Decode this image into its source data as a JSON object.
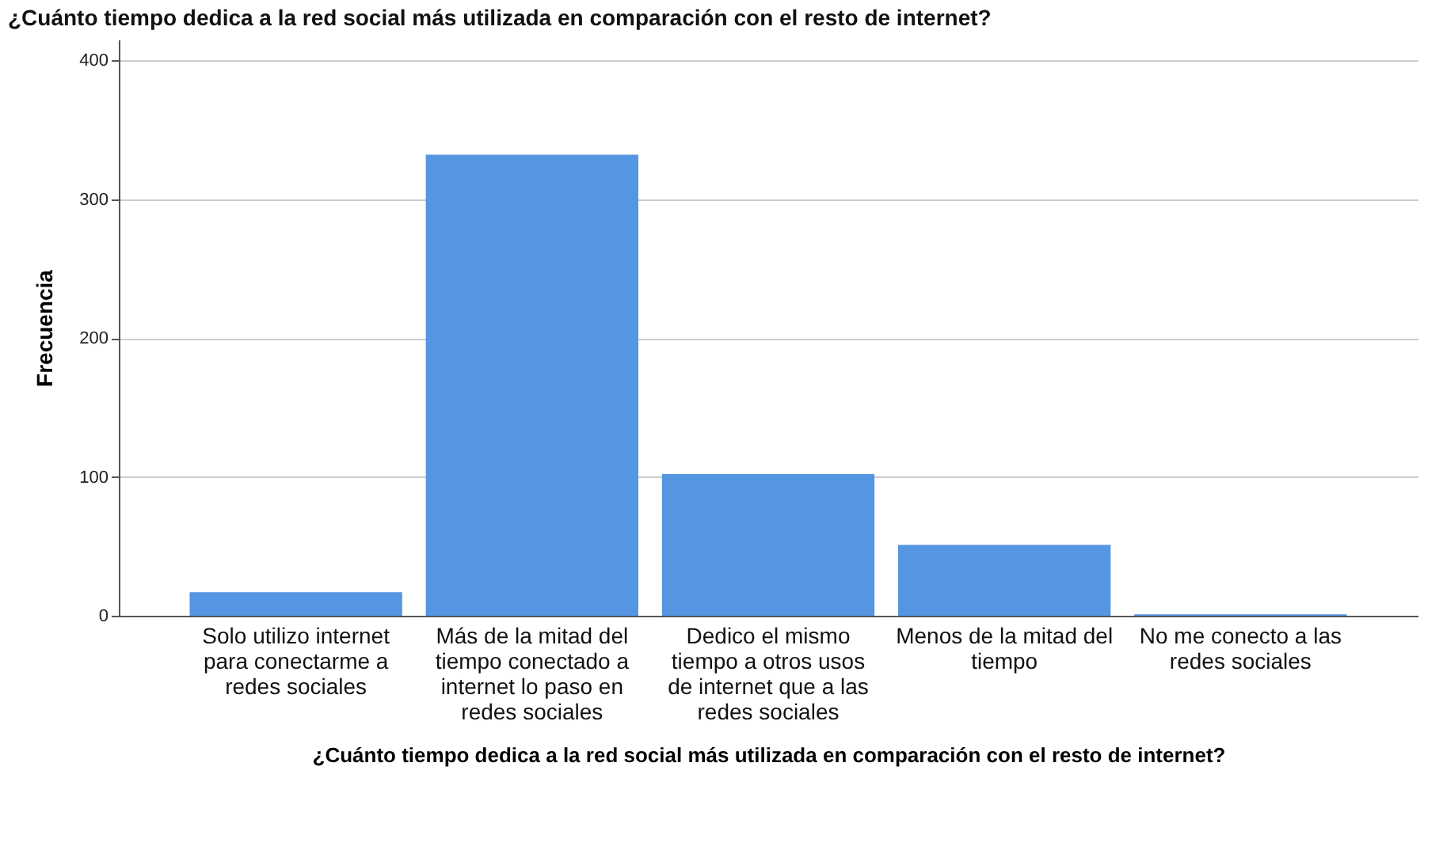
{
  "chart_data": {
    "type": "bar",
    "title": "¿Cuánto tiempo dedica a la red social más utilizada en comparación con el resto de internet?",
    "xlabel": "¿Cuánto tiempo dedica a la red social más utilizada en comparación con el resto de internet?",
    "ylabel": "Frecuencia",
    "categories": [
      "Solo utilizo internet para conectarme a redes sociales",
      "Más de la mitad del tiempo conectado a internet lo paso en redes sociales",
      "Dedico el mismo tiempo a otros usos de internet que a las redes sociales",
      "Menos de la mitad del tiempo",
      "No me conecto a las redes sociales"
    ],
    "values": [
      17,
      332,
      102,
      51,
      1
    ],
    "color": "#5596e3",
    "ylim": [
      0,
      415
    ],
    "yticks": [
      0,
      100,
      200,
      300,
      400
    ],
    "grid": "y"
  }
}
